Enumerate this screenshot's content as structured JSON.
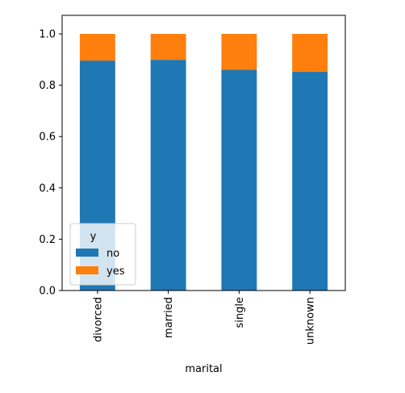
{
  "chart_data": {
    "type": "bar",
    "stacked": true,
    "categories": [
      "divorced",
      "married",
      "single",
      "unknown"
    ],
    "series": [
      {
        "name": "no",
        "values": [
          0.896,
          0.899,
          0.86,
          0.852
        ],
        "color": "#1f77b4"
      },
      {
        "name": "yes",
        "values": [
          0.104,
          0.101,
          0.14,
          0.148
        ],
        "color": "#ff7f0e"
      }
    ],
    "title": "",
    "xlabel": "marital",
    "ylabel": "",
    "ylim": [
      0,
      1.0
    ],
    "yticks": [
      "0.0",
      "0.2",
      "0.4",
      "0.6",
      "0.8",
      "1.0"
    ],
    "grid": false,
    "legend": {
      "title": "y",
      "position": "lower-left",
      "entries": [
        "no",
        "yes"
      ]
    }
  }
}
